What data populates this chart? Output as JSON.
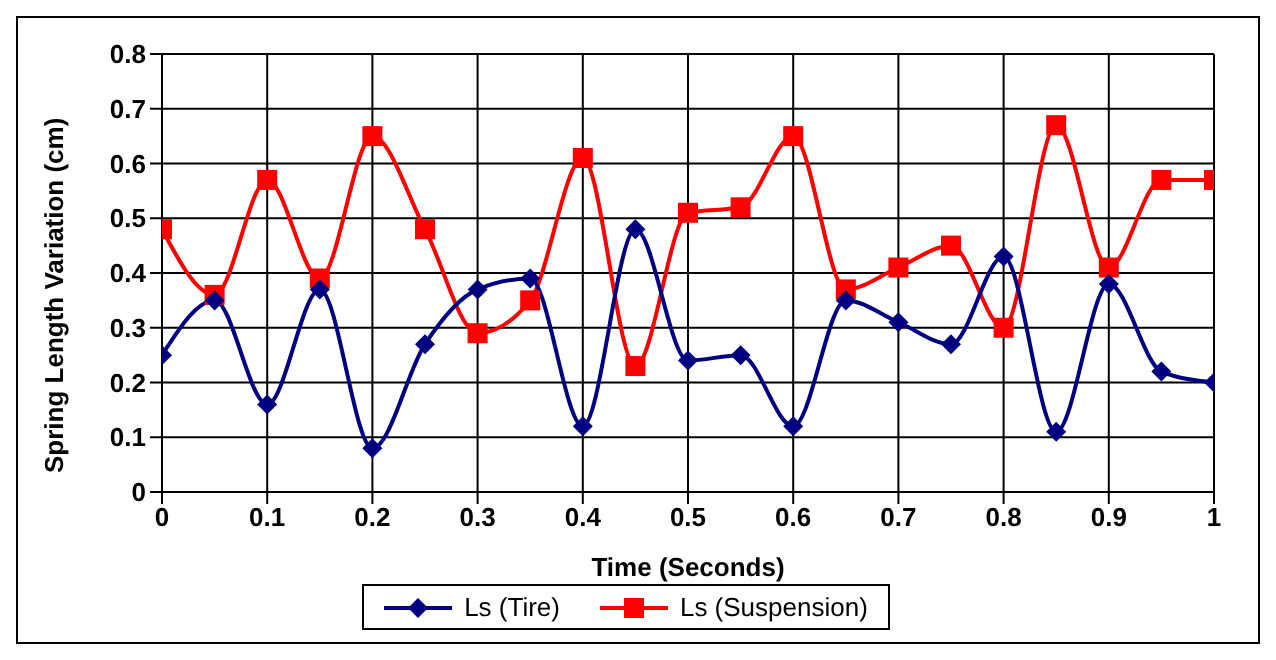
{
  "chart_data": {
    "type": "line",
    "xlabel": "Time (Seconds)",
    "ylabel": "Spring Length Variation (cm)",
    "x": [
      0,
      0.05,
      0.1,
      0.15,
      0.2,
      0.25,
      0.3,
      0.35,
      0.4,
      0.45,
      0.5,
      0.55,
      0.6,
      0.65,
      0.7,
      0.75,
      0.8,
      0.85,
      0.9,
      0.95,
      1
    ],
    "series": [
      {
        "name": "Ls (Tire)",
        "color": "#000080",
        "marker": "diamond",
        "values": [
          0.25,
          0.35,
          0.16,
          0.37,
          0.08,
          0.27,
          0.37,
          0.39,
          0.12,
          0.48,
          0.24,
          0.25,
          0.12,
          0.35,
          0.31,
          0.27,
          0.43,
          0.11,
          0.38,
          0.22,
          0.2
        ]
      },
      {
        "name": "Ls (Suspension)",
        "color": "#ff0000",
        "marker": "square",
        "values": [
          0.48,
          0.36,
          0.57,
          0.39,
          0.65,
          0.48,
          0.29,
          0.35,
          0.61,
          0.23,
          0.51,
          0.52,
          0.65,
          0.37,
          0.41,
          0.45,
          0.3,
          0.67,
          0.41,
          0.57,
          0.57
        ]
      }
    ],
    "xlim": [
      0,
      1
    ],
    "xticks": [
      0,
      0.1,
      0.2,
      0.3,
      0.4,
      0.5,
      0.6,
      0.7,
      0.8,
      0.9,
      1
    ],
    "ylim": [
      0,
      0.8
    ],
    "yticks": [
      0,
      0.1,
      0.2,
      0.3,
      0.4,
      0.5,
      0.6,
      0.7,
      0.8
    ],
    "grid": true,
    "legend": "bottom",
    "line_style": "solid"
  }
}
